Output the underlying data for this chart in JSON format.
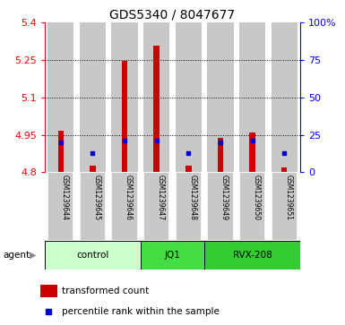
{
  "title": "GDS5340 / 8047677",
  "samples": [
    "GSM1239644",
    "GSM1239645",
    "GSM1239646",
    "GSM1239647",
    "GSM1239648",
    "GSM1239649",
    "GSM1239650",
    "GSM1239651"
  ],
  "red_values": [
    4.968,
    4.828,
    5.248,
    5.308,
    4.828,
    4.938,
    4.958,
    4.818
  ],
  "percentile_values": [
    20,
    13,
    21,
    21,
    13,
    20,
    21,
    13
  ],
  "y_min": 4.8,
  "y_max": 5.4,
  "y_left_ticks": [
    4.8,
    4.95,
    5.1,
    5.25,
    5.4
  ],
  "y_right_ticks": [
    0,
    25,
    50,
    75,
    100
  ],
  "y_right_labels": [
    "0",
    "25",
    "50",
    "75",
    "100%"
  ],
  "grid_values": [
    4.95,
    5.1,
    5.25
  ],
  "groups": [
    {
      "label": "control",
      "indices": [
        0,
        1,
        2
      ],
      "color": "#ccffcc"
    },
    {
      "label": "JQ1",
      "indices": [
        3,
        4
      ],
      "color": "#44dd44"
    },
    {
      "label": "RVX-208",
      "indices": [
        5,
        6,
        7
      ],
      "color": "#33cc33"
    }
  ],
  "bar_color": "#cc0000",
  "blue_marker_color": "#0000cc",
  "baseline": 4.8,
  "col_bg_color": "#c8c8c8",
  "legend_red": "transformed count",
  "legend_blue": "percentile rank within the sample",
  "agent_label": "agent"
}
